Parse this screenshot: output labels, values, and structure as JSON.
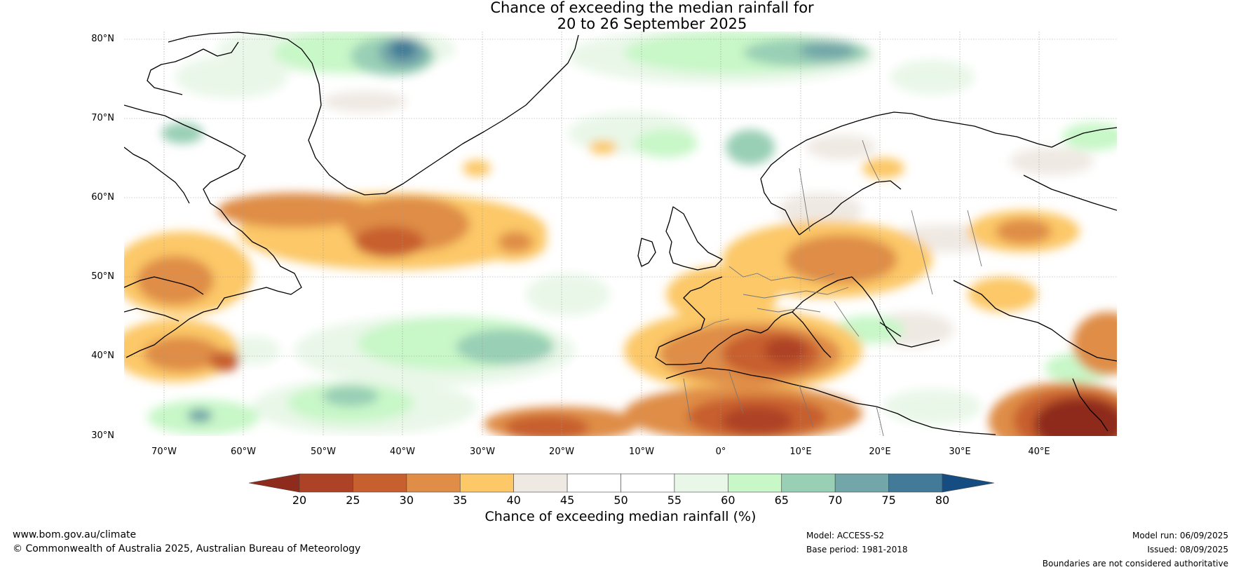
{
  "title_line1": "Chance of exceeding the median rainfall for",
  "title_line2": "20 to 26 September 2025",
  "lat_labels": [
    "80°N",
    "70°N",
    "60°N",
    "50°N",
    "40°N",
    "30°N"
  ],
  "lon_labels": [
    "70°W",
    "60°W",
    "50°W",
    "40°W",
    "30°W",
    "20°W",
    "10°W",
    "0°",
    "10°E",
    "20°E",
    "30°E",
    "40°E"
  ],
  "colorbar": {
    "ticks": [
      "20",
      "25",
      "30",
      "35",
      "40",
      "45",
      "50",
      "55",
      "60",
      "65",
      "70",
      "75",
      "80"
    ],
    "label": "Chance of exceeding median rainfall (%)",
    "colors": [
      "#8e2b1c",
      "#ad4226",
      "#c75f2f",
      "#df8d47",
      "#fcc868",
      "#efe9e3",
      "#ffffff",
      "#ffffff",
      "#e9f7e8",
      "#c8f7c8",
      "#99cfb5",
      "#72a6a8",
      "#437a97",
      "#154d82"
    ]
  },
  "footer": {
    "website": "www.bom.gov.au/climate",
    "copyright": "© Commonwealth of Australia 2025, Australian Bureau of Meteorology",
    "model": "Model: ACCESS-S2",
    "base_period": "Base period: 1981-2018",
    "model_run": "Model run: 06/09/2025",
    "issued": "Issued: 08/09/2025",
    "disclaimer": "Boundaries are not considered authoritative"
  }
}
